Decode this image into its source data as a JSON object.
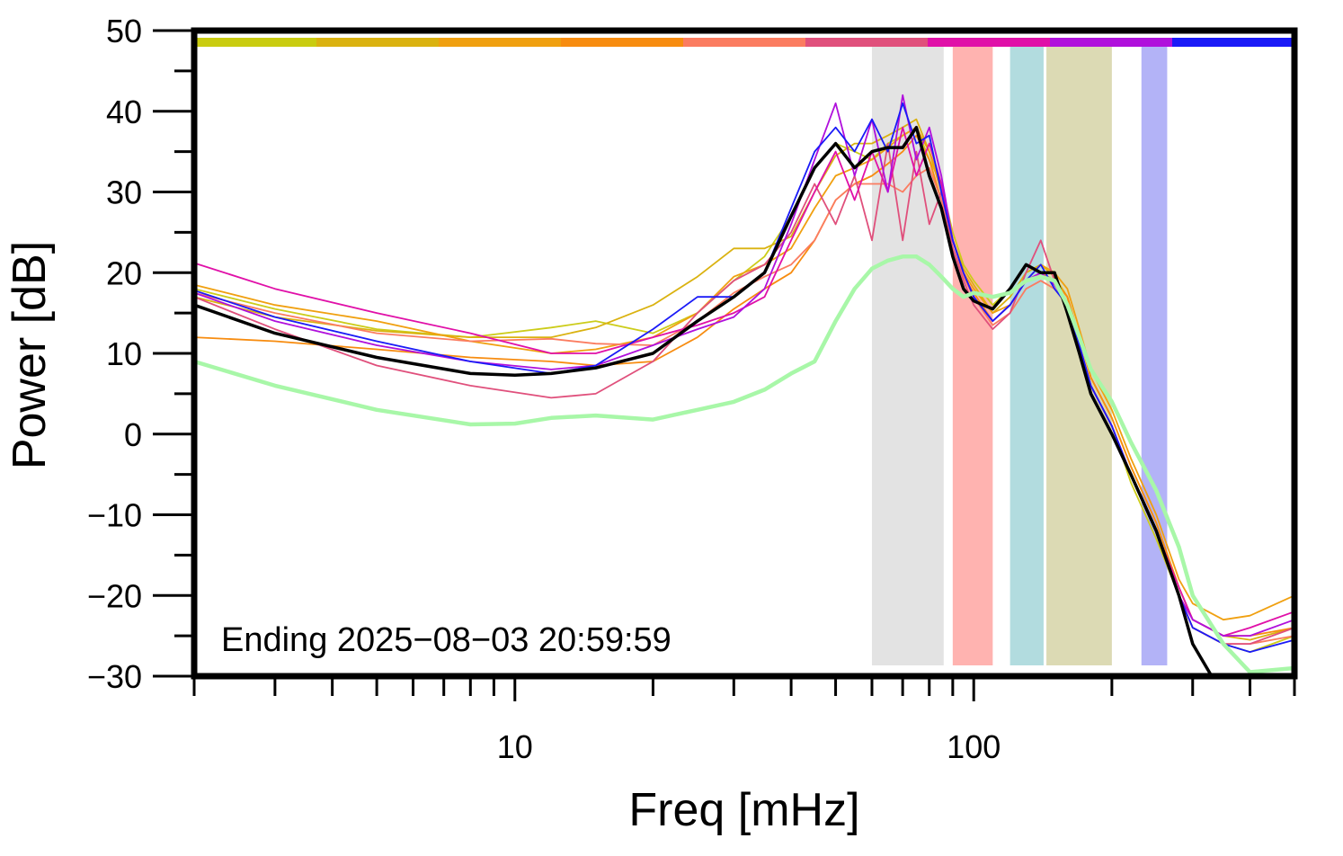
{
  "chart_data": {
    "type": "line",
    "xlabel": "Freq [mHz]",
    "ylabel": "Power [dB]",
    "x_scale": "log",
    "xlim": [
      2,
      500
    ],
    "ylim": [
      -30,
      50
    ],
    "x_tick_labels": [
      {
        "value": 10,
        "label": "10"
      },
      {
        "value": 100,
        "label": "100"
      }
    ],
    "y_ticks": [
      50,
      40,
      30,
      20,
      10,
      0,
      -10,
      -20,
      -30
    ],
    "y_tick_labels": [
      "50",
      "40",
      "30",
      "20",
      "10",
      "0",
      "−10",
      "−20",
      "−30"
    ],
    "annotation": "Ending 2025−08−03 20:59:59",
    "grid": false,
    "legend": "none",
    "bands": [
      {
        "x0": 60,
        "x1": 86,
        "color": "#e3e3e3"
      },
      {
        "x0": 90,
        "x1": 110,
        "color": "#ffb3b0"
      },
      {
        "x0": 120,
        "x1": 142,
        "color": "#b2dcdf"
      },
      {
        "x0": 144,
        "x1": 200,
        "color": "#dcdab4"
      },
      {
        "x0": 232,
        "x1": 264,
        "color": "#b3b3f7"
      }
    ],
    "top_bar_colors": [
      "#c9cc10",
      "#dab210",
      "#f0a010",
      "#f78c10",
      "#fb7c60",
      "#e0507c",
      "#e010a8",
      "#b010dc",
      "#1a1af7"
    ],
    "series": [
      {
        "color": "#cccc1a",
        "x": [
          2,
          3,
          5,
          8,
          12,
          15,
          20,
          25,
          30,
          35,
          40,
          45,
          50,
          55,
          60,
          65,
          70,
          75,
          80,
          85,
          90,
          95,
          100,
          110,
          120,
          130,
          140,
          150,
          160,
          170,
          180,
          200,
          220,
          250,
          280,
          300,
          350,
          400,
          500
        ],
        "y": [
          18,
          15.5,
          13,
          12,
          13.2,
          14,
          12.5,
          15,
          19,
          22,
          27,
          33,
          36,
          35,
          34,
          36,
          37,
          38,
          34,
          31,
          25,
          21,
          19,
          16,
          18,
          21,
          20,
          19,
          17,
          11,
          6,
          1,
          -6,
          -13,
          -20,
          -24,
          -26,
          -27,
          -25
        ]
      },
      {
        "color": "#dab210",
        "x": [
          2,
          3,
          5,
          8,
          12,
          15,
          20,
          25,
          30,
          35,
          40,
          45,
          50,
          55,
          60,
          65,
          70,
          75,
          80,
          85,
          90,
          95,
          100,
          110,
          120,
          130,
          140,
          150,
          160,
          170,
          180,
          200,
          220,
          250,
          280,
          300,
          350,
          400,
          500
        ],
        "y": [
          17,
          14.5,
          12.8,
          12,
          12,
          13.2,
          16,
          19.5,
          23,
          23,
          24.5,
          30,
          34.5,
          36,
          36,
          37,
          38,
          39,
          35,
          31,
          24,
          20.5,
          18.5,
          15,
          17,
          20,
          21,
          19.5,
          17,
          12,
          7,
          2,
          -4,
          -11,
          -19,
          -23,
          -25,
          -25.5,
          -24
        ]
      },
      {
        "color": "#f0a010",
        "x": [
          2,
          3,
          5,
          8,
          12,
          15,
          20,
          25,
          30,
          35,
          40,
          45,
          50,
          55,
          60,
          65,
          70,
          75,
          80,
          85,
          90,
          95,
          100,
          110,
          120,
          130,
          140,
          150,
          160,
          170,
          180,
          200,
          220,
          250,
          280,
          300,
          350,
          400,
          500
        ],
        "y": [
          18.5,
          16,
          14,
          11.5,
          10,
          10.5,
          12,
          15,
          19.5,
          21,
          23,
          28,
          32,
          33,
          34,
          35.5,
          37,
          38,
          35,
          30,
          24,
          20,
          18,
          15,
          16,
          19,
          21,
          20,
          18,
          13,
          8,
          3,
          -3,
          -10,
          -18,
          -21,
          -23,
          -22.5,
          -20
        ]
      },
      {
        "color": "#f78c10",
        "x": [
          2,
          3,
          5,
          8,
          12,
          15,
          20,
          25,
          30,
          35,
          40,
          45,
          50,
          55,
          60,
          65,
          70,
          75,
          80,
          85,
          90,
          95,
          100,
          110,
          120,
          130,
          140,
          150,
          160,
          170,
          180,
          200,
          220,
          250,
          280,
          300,
          350,
          400,
          500
        ],
        "y": [
          12,
          11.5,
          10.5,
          9.5,
          9,
          8.5,
          9,
          12,
          15.5,
          18,
          20,
          24,
          29,
          31,
          32,
          33.5,
          35,
          37,
          34,
          29,
          23,
          19.5,
          17.5,
          14,
          16,
          19,
          20,
          19,
          17,
          12,
          7,
          2,
          -4,
          -11,
          -19,
          -23,
          -25,
          -25,
          -24
        ]
      },
      {
        "color": "#fb7c60",
        "x": [
          2,
          3,
          5,
          8,
          12,
          15,
          20,
          25,
          30,
          35,
          40,
          45,
          50,
          55,
          60,
          65,
          70,
          75,
          80,
          85,
          90,
          95,
          100,
          110,
          120,
          130,
          140,
          150,
          160,
          170,
          180,
          200,
          220,
          250,
          280,
          300,
          350,
          400,
          500
        ],
        "y": [
          17.5,
          15,
          12.5,
          11.5,
          11.8,
          11.2,
          11,
          14,
          17.5,
          19.5,
          21,
          24,
          29,
          31,
          31,
          31,
          30,
          32,
          33,
          29,
          23,
          19.5,
          17,
          13.5,
          15,
          18,
          19,
          18,
          16,
          11,
          6,
          1,
          -5,
          -12,
          -20,
          -24,
          -26,
          -26,
          -25
        ]
      },
      {
        "color": "#e0507c",
        "x": [
          2,
          3,
          5,
          8,
          12,
          15,
          20,
          25,
          30,
          35,
          40,
          45,
          50,
          55,
          60,
          65,
          70,
          75,
          80,
          85,
          90,
          95,
          100,
          110,
          120,
          130,
          140,
          150,
          160,
          170,
          180,
          200,
          220,
          250,
          280,
          300,
          350,
          400,
          500
        ],
        "y": [
          17,
          13,
          8.5,
          6,
          4.5,
          5,
          9,
          15,
          19,
          21,
          25,
          31,
          26,
          32,
          24,
          36,
          24,
          35,
          26,
          30,
          23,
          19,
          16,
          13,
          15,
          20,
          24,
          19,
          16,
          11,
          5,
          0,
          -5,
          -12,
          -20,
          -24,
          -26,
          -26,
          -24
        ]
      },
      {
        "color": "#e010a8",
        "x": [
          2,
          3,
          5,
          8,
          12,
          15,
          20,
          25,
          30,
          35,
          40,
          45,
          50,
          55,
          60,
          65,
          70,
          75,
          80,
          85,
          90,
          95,
          100,
          110,
          120,
          130,
          140,
          150,
          160,
          170,
          180,
          200,
          220,
          250,
          280,
          300,
          350,
          400,
          500
        ],
        "y": [
          21.2,
          18,
          15,
          12.5,
          10,
          10,
          12,
          13.5,
          15,
          17,
          24,
          30,
          35,
          29,
          35,
          30,
          38,
          32,
          36,
          31,
          24,
          20,
          17,
          14,
          16,
          19,
          20,
          18.5,
          16,
          11,
          6,
          1,
          -5,
          -12,
          -19,
          -23,
          -25,
          -24,
          -22
        ]
      },
      {
        "color": "#b010dc",
        "x": [
          2,
          3,
          5,
          8,
          12,
          15,
          20,
          25,
          30,
          35,
          40,
          45,
          50,
          55,
          60,
          65,
          70,
          75,
          80,
          85,
          90,
          95,
          100,
          110,
          120,
          130,
          140,
          150,
          160,
          170,
          180,
          200,
          220,
          250,
          280,
          300,
          350,
          400,
          500
        ],
        "y": [
          17.5,
          14,
          11,
          9,
          8,
          8.5,
          11,
          13,
          14.5,
          18,
          26,
          34,
          41,
          32,
          39,
          30,
          42,
          34,
          38,
          32,
          24,
          20,
          17,
          14,
          16,
          19,
          20,
          18.5,
          16,
          11,
          6,
          1,
          -5,
          -12,
          -20,
          -23,
          -25,
          -25,
          -23
        ]
      },
      {
        "color": "#1a1af7",
        "x": [
          2,
          3,
          5,
          8,
          12,
          15,
          20,
          25,
          30,
          35,
          40,
          45,
          50,
          55,
          60,
          65,
          70,
          75,
          80,
          85,
          90,
          95,
          100,
          110,
          120,
          130,
          140,
          150,
          160,
          170,
          180,
          200,
          220,
          250,
          280,
          300,
          350,
          400,
          500
        ],
        "y": [
          17.8,
          14.5,
          11.5,
          9,
          7.5,
          8.5,
          13,
          17,
          17,
          20,
          28,
          35,
          38,
          35,
          39,
          35,
          41,
          36,
          37,
          30,
          24,
          20,
          17,
          14,
          16,
          19,
          21,
          18,
          16,
          11,
          6,
          1,
          -5,
          -12,
          -20,
          -24,
          -26,
          -27,
          -25.5
        ]
      },
      {
        "color": "#000000",
        "width": 3.5,
        "x": [
          2,
          3,
          5,
          8,
          10,
          12,
          15,
          20,
          25,
          30,
          35,
          40,
          45,
          50,
          55,
          60,
          65,
          70,
          75,
          80,
          85,
          90,
          95,
          100,
          110,
          120,
          130,
          140,
          150,
          160,
          170,
          180,
          200,
          220,
          250,
          280,
          300,
          330,
          500
        ],
        "y": [
          16,
          12.5,
          9.5,
          7.5,
          7.3,
          7.5,
          8.2,
          10,
          14,
          17,
          20,
          27,
          33,
          36,
          33,
          35,
          35.5,
          35.5,
          38,
          32,
          28,
          22,
          18,
          16.5,
          15.5,
          18,
          21,
          20,
          20,
          15,
          10,
          5,
          0,
          -5,
          -12,
          -20,
          -26,
          -30,
          -30
        ]
      },
      {
        "color": "#a8f7a8",
        "width": 4.5,
        "x": [
          2,
          3,
          5,
          8,
          10,
          12,
          15,
          20,
          25,
          30,
          35,
          40,
          45,
          50,
          55,
          60,
          65,
          70,
          75,
          80,
          85,
          90,
          95,
          100,
          110,
          120,
          130,
          140,
          150,
          160,
          170,
          180,
          200,
          220,
          250,
          280,
          300,
          350,
          400,
          500
        ],
        "y": [
          9,
          6,
          3,
          1.2,
          1.3,
          2,
          2.3,
          1.8,
          3,
          4,
          5.5,
          7.5,
          9,
          14,
          18,
          20.5,
          21.5,
          22,
          22,
          21,
          19.5,
          18,
          17,
          17.5,
          17,
          17.5,
          19,
          19.5,
          19,
          16,
          12,
          8,
          4,
          -1,
          -7,
          -14,
          -20,
          -26,
          -29.5,
          -29
        ]
      }
    ]
  }
}
